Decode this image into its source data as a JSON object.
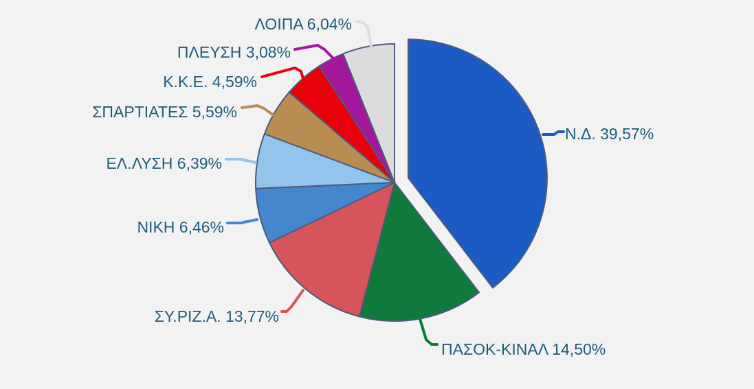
{
  "chart_data": {
    "type": "pie",
    "title": "",
    "slices": [
      {
        "label": "Ν.Δ.",
        "value": 39.57,
        "text": "Ν.Δ. 39,57%",
        "color": "#1c5bc4",
        "exploded": true
      },
      {
        "label": "ΠΑΣΟΚ-ΚΙΝΑΛ",
        "value": 14.5,
        "text": "ΠΑΣΟΚ-ΚΙΝΑΛ 14,50%",
        "color": "#0f7a3c"
      },
      {
        "label": "ΣΥ.ΡΙΖ.Α.",
        "value": 13.77,
        "text": "ΣΥ.ΡΙΖ.Α. 13,77%",
        "color": "#d6555a"
      },
      {
        "label": "ΝΙΚΗ",
        "value": 6.46,
        "text": "ΝΙΚΗ 6,46%",
        "color": "#4487cd"
      },
      {
        "label": "ΕΛ.ΛΥΣΗ",
        "value": 6.39,
        "text": "ΕΛ.ΛΥΣΗ 6,39%",
        "color": "#92c4ec"
      },
      {
        "label": "ΣΠΑΡΤΙΑΤΕΣ",
        "value": 5.59,
        "text": "ΣΠΑΡΤΙΑΤΕΣ 5,59%",
        "color": "#b98d52"
      },
      {
        "label": "Κ.Κ.Ε.",
        "value": 4.59,
        "text": "Κ.Κ.Ε. 4,59%",
        "color": "#e8000b"
      },
      {
        "label": "ΠΛΕΥΣΗ",
        "value": 3.08,
        "text": "ΠΛΕΥΣΗ 3,08%",
        "color": "#a3189c"
      },
      {
        "label": "ΛΟΙΠΑ",
        "value": 6.04,
        "text": "ΛΟΙΠΑ 6,04%",
        "color": "#dcdcdc"
      }
    ],
    "legend": "none",
    "label_color": "#1f5c7a",
    "outline_color": "#4d5b7c"
  }
}
